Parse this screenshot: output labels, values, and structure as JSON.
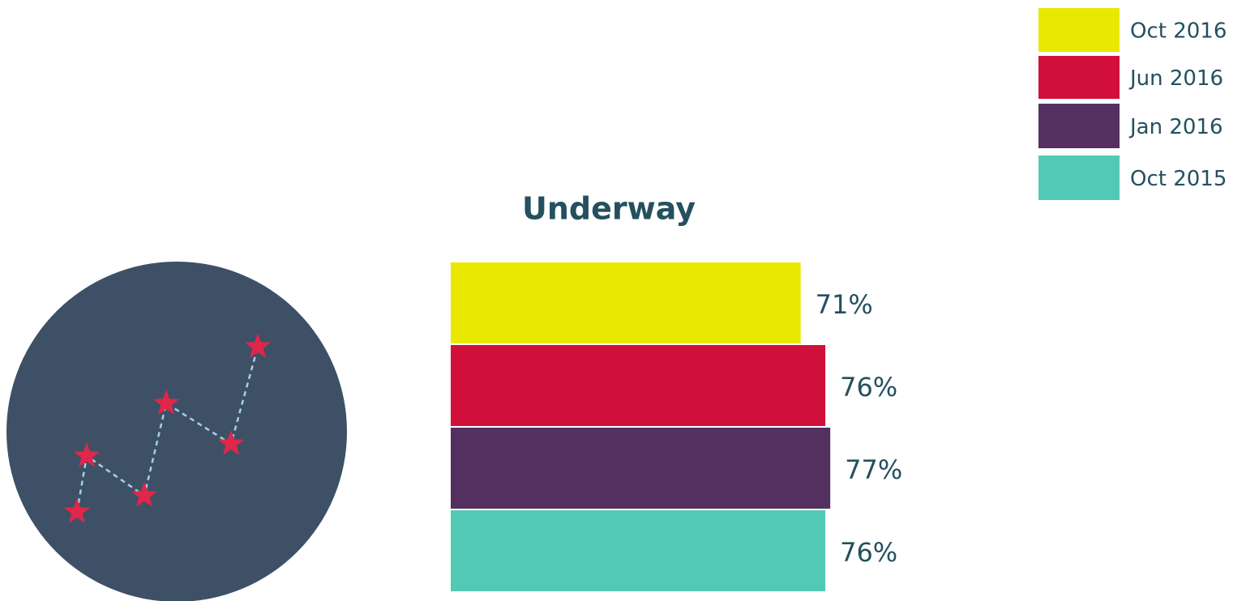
{
  "chart_data": {
    "type": "hbar",
    "title": "Underway",
    "categories": [
      "Oct 2016",
      "Jun 2016",
      "Jan 2016",
      "Oct 2015"
    ],
    "values": [
      71,
      76,
      77,
      76
    ],
    "value_labels": [
      "71%",
      "76%",
      "77%",
      "76%"
    ],
    "colors": [
      "#e8e800",
      "#d0103a",
      "#53305f",
      "#52c9b4"
    ],
    "legend": "top-right"
  }
}
